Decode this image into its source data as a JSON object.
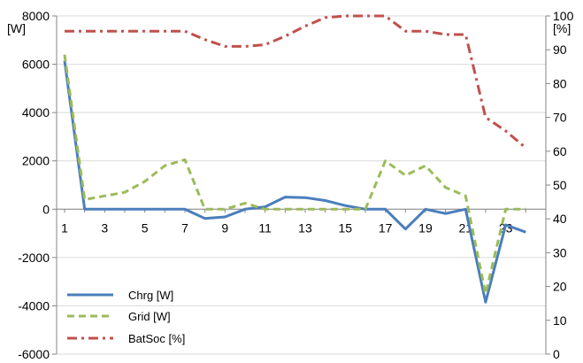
{
  "chart_data": {
    "type": "line",
    "x": [
      1,
      2,
      3,
      4,
      5,
      6,
      7,
      8,
      9,
      10,
      11,
      12,
      13,
      14,
      15,
      16,
      17,
      18,
      19,
      20,
      21,
      22,
      23,
      24
    ],
    "x_tick_labels": [
      "1",
      "3",
      "5",
      "7",
      "9",
      "11",
      "13",
      "15",
      "17",
      "19",
      "21",
      "23"
    ],
    "y_left": {
      "unit_label": "[W]",
      "range": [
        -6000,
        8000
      ],
      "ticks": [
        8000,
        6000,
        4000,
        2000,
        0,
        -2000,
        -4000,
        -6000
      ]
    },
    "y_right": {
      "unit_label": "[%]",
      "range": [
        0,
        100
      ],
      "ticks": [
        100,
        90,
        80,
        70,
        60,
        50,
        40,
        30,
        20,
        10,
        0
      ]
    },
    "series": [
      {
        "name": "Chrg [W]",
        "axis": "left",
        "style": "solid",
        "color": "#4a7ebb",
        "values": [
          6150,
          0,
          0,
          0,
          0,
          0,
          0,
          -380,
          -320,
          0,
          100,
          500,
          480,
          360,
          150,
          0,
          0,
          -820,
          0,
          -180,
          0,
          -3850,
          -650,
          -950
        ]
      },
      {
        "name": "Grid [W]",
        "axis": "left",
        "style": "dashed",
        "color": "#9bbb59",
        "values": [
          6400,
          400,
          550,
          700,
          1150,
          1800,
          2050,
          0,
          0,
          250,
          0,
          0,
          0,
          0,
          0,
          0,
          2000,
          1400,
          1800,
          900,
          550,
          -3500,
          0,
          0
        ]
      },
      {
        "name": "BatSoc [%]",
        "axis": "right",
        "style": "dashdot",
        "color": "#c0504d",
        "values": [
          95.5,
          95.5,
          95.5,
          95.5,
          95.5,
          95.5,
          95.5,
          93,
          91,
          91,
          91.5,
          94,
          97,
          99.5,
          100,
          100,
          100,
          95.5,
          95.5,
          94.5,
          94.5,
          70,
          66,
          61
        ]
      }
    ],
    "legend": {
      "placement": "bottom-left",
      "entries": [
        "Chrg [W]",
        "Grid [W]",
        "BatSoc [%]"
      ]
    },
    "grid": "horizontal"
  }
}
